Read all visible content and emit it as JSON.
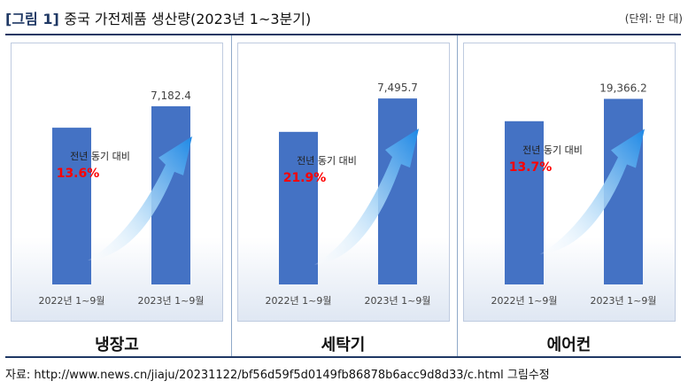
{
  "header": {
    "label": "[그림 1]",
    "title": "중국 가전제품 생산량(2023년 1~3분기)",
    "unit": "(단위: 만 대)"
  },
  "source": "자료: http://www.news.cn/jiaju/20231122/bf56d59f5d0149fb86878b6acc9d8d33/c.html 그림수정",
  "colors": {
    "bar": "#4472c4",
    "growth": "#ff0000",
    "arrow_start": "#ffffff",
    "arrow_end": "#1e88e5"
  },
  "chart_data": [
    {
      "type": "bar",
      "title": "냉장고",
      "categories": [
        "2022년 1~9월",
        "2023년 1~9월"
      ],
      "values": [
        6317.5,
        7182.4
      ],
      "value_labels": [
        "",
        "7,182.4"
      ],
      "annotation": {
        "label": "전년 동기 대비",
        "growth": "13.6%"
      },
      "ylim": [
        0,
        9000
      ],
      "grid": false
    },
    {
      "type": "bar",
      "title": "세탁기",
      "categories": [
        "2022년 1~9월",
        "2023년 1~9월"
      ],
      "values": [
        6149.6,
        7495.7
      ],
      "value_labels": [
        "",
        "7,495.7"
      ],
      "annotation": {
        "label": "전년 동기 대비",
        "growth": "21.9%"
      },
      "ylim": [
        0,
        9000
      ],
      "grid": false
    },
    {
      "type": "bar",
      "title": "에어컨",
      "categories": [
        "2022년 1~9월",
        "2023년 1~9월"
      ],
      "values": [
        17033.0,
        19366.2
      ],
      "value_labels": [
        "",
        "19,366.2"
      ],
      "annotation": {
        "label": "전년 동기 대비",
        "growth": "13.7%"
      },
      "ylim": [
        0,
        23300
      ],
      "grid": false
    }
  ]
}
